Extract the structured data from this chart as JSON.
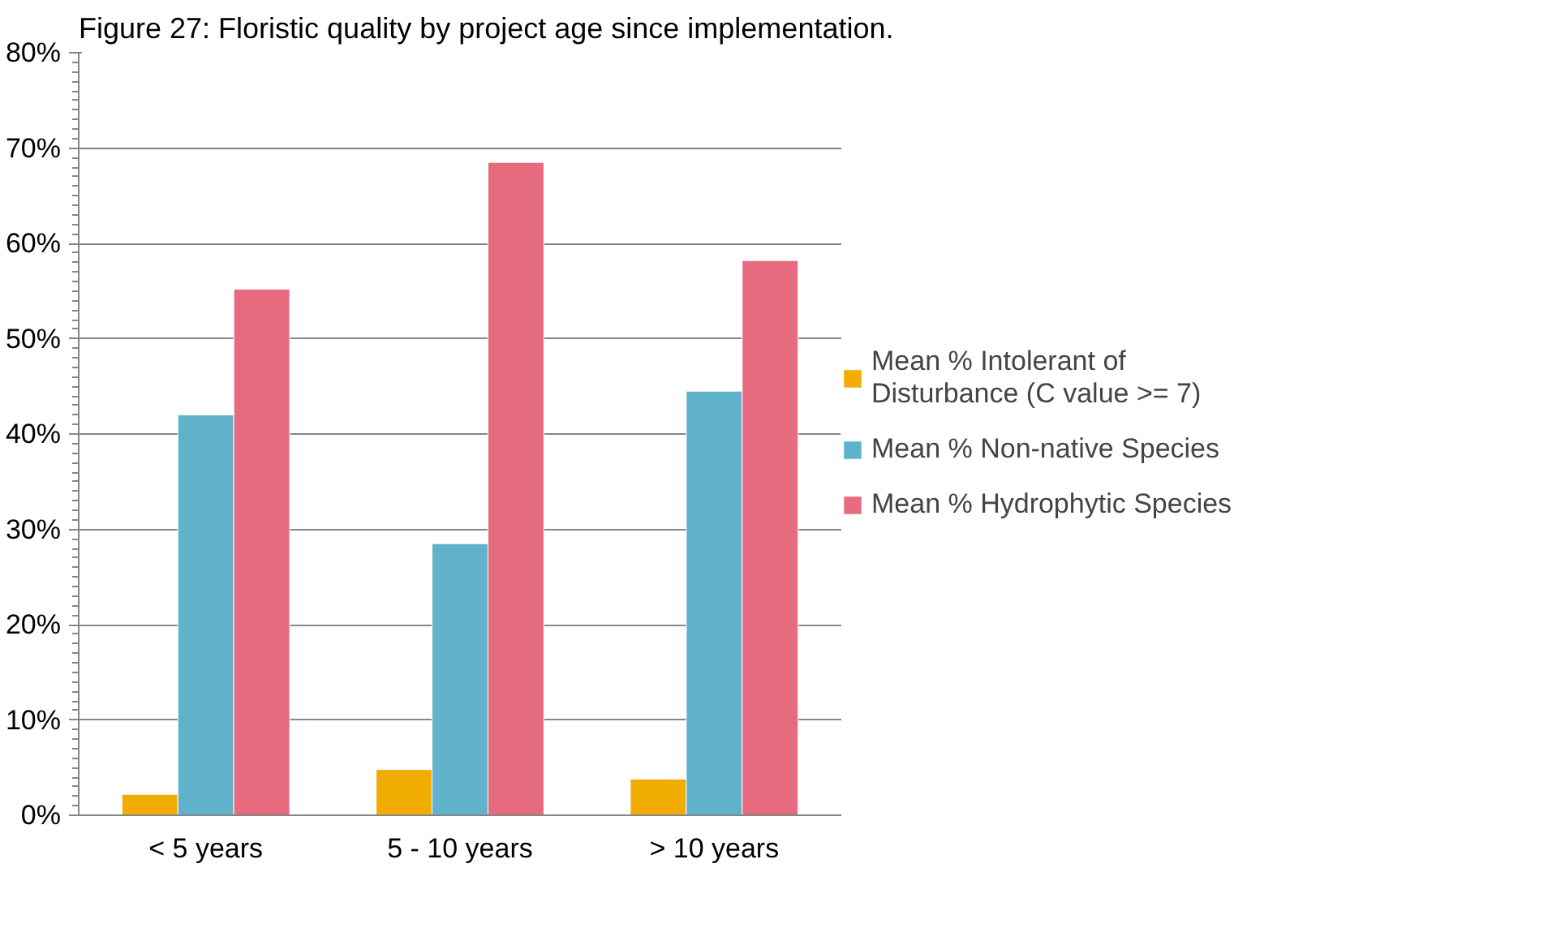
{
  "chart_data": {
    "type": "bar",
    "title": "Figure 27: Floristic quality by project age since implementation.",
    "categories": [
      "< 5 years",
      "5 - 10 years",
      "> 10 years"
    ],
    "series": [
      {
        "name": "Mean % Intolerant of Disturbance (C value >= 7)",
        "color": "#f0ac00",
        "values": [
          2.2,
          4.8,
          3.8
        ]
      },
      {
        "name": "Mean % Non-native Species",
        "color": "#60b2cb",
        "values": [
          42.0,
          28.5,
          44.5
        ]
      },
      {
        "name": "Mean % Hydrophytic Species",
        "color": "#e66b7e",
        "values": [
          55.2,
          68.5,
          58.2
        ]
      }
    ],
    "ylim": [
      0,
      80
    ],
    "yticks": [
      {
        "value": 0,
        "label": "0%"
      },
      {
        "value": 10,
        "label": "10%"
      },
      {
        "value": 20,
        "label": "20%"
      },
      {
        "value": 30,
        "label": "30%"
      },
      {
        "value": 40,
        "label": "40%"
      },
      {
        "value": 50,
        "label": "50%"
      },
      {
        "value": 60,
        "label": "60%"
      },
      {
        "value": 70,
        "label": "70%"
      },
      {
        "value": 80,
        "label": "80%"
      }
    ],
    "grid": "y",
    "legend": "right"
  }
}
